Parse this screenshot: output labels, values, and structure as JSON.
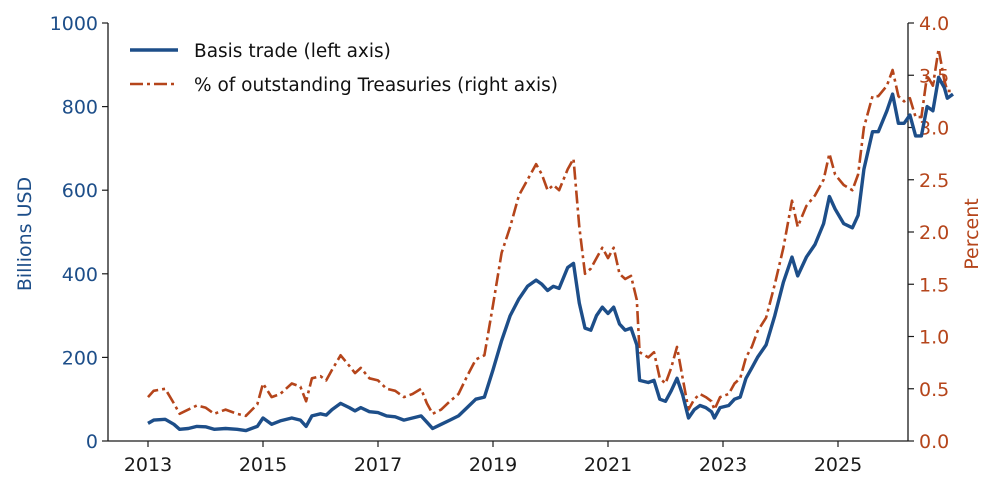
{
  "chart_data": {
    "type": "line",
    "xlim": [
      2012.5,
      2026.7
    ],
    "x_ticks": [
      2013,
      2015,
      2017,
      2019,
      2021,
      2023,
      2025
    ],
    "left_axis": {
      "label": "Billions USD",
      "lim": [
        0,
        1000
      ],
      "ticks": [
        0,
        200,
        400,
        600,
        800,
        1000
      ],
      "color": "#1d4e89"
    },
    "right_axis": {
      "label": "Percent",
      "lim": [
        0.0,
        4.0
      ],
      "ticks": [
        "0.0",
        "0.5",
        "1.0",
        "1.5",
        "2.0",
        "2.5",
        "3.0",
        "3.5",
        "4.0"
      ],
      "color": "#b5451b"
    },
    "legend_position": "top-left",
    "grid": false,
    "series": [
      {
        "name": "Basis trade (left axis)",
        "axis": "left",
        "style": "solid",
        "color": "#1d4e89",
        "points": [
          [
            2013.0,
            42
          ],
          [
            2013.1,
            50
          ],
          [
            2013.3,
            52
          ],
          [
            2013.45,
            40
          ],
          [
            2013.55,
            28
          ],
          [
            2013.7,
            30
          ],
          [
            2013.85,
            35
          ],
          [
            2014.0,
            34
          ],
          [
            2014.15,
            28
          ],
          [
            2014.35,
            30
          ],
          [
            2014.55,
            28
          ],
          [
            2014.7,
            25
          ],
          [
            2014.9,
            35
          ],
          [
            2015.0,
            55
          ],
          [
            2015.15,
            40
          ],
          [
            2015.3,
            48
          ],
          [
            2015.5,
            55
          ],
          [
            2015.65,
            50
          ],
          [
            2015.75,
            35
          ],
          [
            2015.85,
            60
          ],
          [
            2016.0,
            65
          ],
          [
            2016.1,
            62
          ],
          [
            2016.2,
            75
          ],
          [
            2016.35,
            90
          ],
          [
            2016.5,
            80
          ],
          [
            2016.6,
            72
          ],
          [
            2016.7,
            80
          ],
          [
            2016.85,
            70
          ],
          [
            2017.0,
            68
          ],
          [
            2017.15,
            60
          ],
          [
            2017.3,
            58
          ],
          [
            2017.45,
            50
          ],
          [
            2017.6,
            55
          ],
          [
            2017.75,
            60
          ],
          [
            2017.85,
            45
          ],
          [
            2017.95,
            30
          ],
          [
            2018.1,
            40
          ],
          [
            2018.25,
            50
          ],
          [
            2018.4,
            60
          ],
          [
            2018.55,
            80
          ],
          [
            2018.7,
            100
          ],
          [
            2018.85,
            105
          ],
          [
            2019.0,
            170
          ],
          [
            2019.15,
            240
          ],
          [
            2019.3,
            300
          ],
          [
            2019.45,
            340
          ],
          [
            2019.6,
            370
          ],
          [
            2019.75,
            385
          ],
          [
            2019.85,
            375
          ],
          [
            2019.95,
            360
          ],
          [
            2020.05,
            370
          ],
          [
            2020.15,
            365
          ],
          [
            2020.3,
            415
          ],
          [
            2020.4,
            425
          ],
          [
            2020.5,
            330
          ],
          [
            2020.6,
            270
          ],
          [
            2020.7,
            265
          ],
          [
            2020.8,
            300
          ],
          [
            2020.9,
            320
          ],
          [
            2021.0,
            305
          ],
          [
            2021.1,
            320
          ],
          [
            2021.2,
            280
          ],
          [
            2021.3,
            265
          ],
          [
            2021.4,
            270
          ],
          [
            2021.5,
            230
          ],
          [
            2021.55,
            145
          ],
          [
            2021.7,
            140
          ],
          [
            2021.8,
            145
          ],
          [
            2021.9,
            100
          ],
          [
            2022.0,
            95
          ],
          [
            2022.1,
            120
          ],
          [
            2022.2,
            150
          ],
          [
            2022.3,
            110
          ],
          [
            2022.4,
            55
          ],
          [
            2022.5,
            75
          ],
          [
            2022.6,
            85
          ],
          [
            2022.7,
            80
          ],
          [
            2022.8,
            70
          ],
          [
            2022.85,
            55
          ],
          [
            2022.95,
            80
          ],
          [
            2023.1,
            85
          ],
          [
            2023.2,
            100
          ],
          [
            2023.3,
            105
          ],
          [
            2023.4,
            150
          ],
          [
            2023.5,
            175
          ],
          [
            2023.6,
            200
          ],
          [
            2023.75,
            230
          ],
          [
            2023.9,
            300
          ],
          [
            2024.05,
            380
          ],
          [
            2024.2,
            440
          ],
          [
            2024.3,
            395
          ],
          [
            2024.45,
            440
          ],
          [
            2024.6,
            470
          ],
          [
            2024.75,
            520
          ],
          [
            2024.85,
            585
          ],
          [
            2024.95,
            555
          ],
          [
            2025.1,
            520
          ],
          [
            2025.25,
            510
          ],
          [
            2025.35,
            540
          ],
          [
            2025.45,
            650
          ],
          [
            2025.6,
            740
          ],
          [
            2025.7,
            740
          ],
          [
            2025.85,
            790
          ],
          [
            2025.95,
            830
          ],
          [
            2026.05,
            760
          ],
          [
            2026.15,
            760
          ],
          [
            2026.25,
            780
          ],
          [
            2026.35,
            730
          ],
          [
            2026.45,
            730
          ],
          [
            2026.55,
            800
          ],
          [
            2026.65,
            790
          ],
          [
            2026.75,
            870
          ],
          [
            2026.85,
            845
          ],
          [
            2026.9,
            820
          ],
          [
            2027.0,
            830
          ]
        ]
      },
      {
        "name": "% of outstanding Treasuries (right axis)",
        "axis": "right",
        "style": "dashdot",
        "color": "#b5451b",
        "points": [
          [
            2013.0,
            0.42
          ],
          [
            2013.1,
            0.48
          ],
          [
            2013.3,
            0.5
          ],
          [
            2013.45,
            0.36
          ],
          [
            2013.55,
            0.26
          ],
          [
            2013.7,
            0.3
          ],
          [
            2013.85,
            0.34
          ],
          [
            2014.0,
            0.32
          ],
          [
            2014.15,
            0.26
          ],
          [
            2014.35,
            0.3
          ],
          [
            2014.55,
            0.26
          ],
          [
            2014.7,
            0.24
          ],
          [
            2014.9,
            0.35
          ],
          [
            2015.0,
            0.55
          ],
          [
            2015.15,
            0.42
          ],
          [
            2015.3,
            0.45
          ],
          [
            2015.5,
            0.55
          ],
          [
            2015.65,
            0.52
          ],
          [
            2015.75,
            0.38
          ],
          [
            2015.85,
            0.6
          ],
          [
            2016.0,
            0.62
          ],
          [
            2016.1,
            0.58
          ],
          [
            2016.2,
            0.68
          ],
          [
            2016.35,
            0.82
          ],
          [
            2016.5,
            0.72
          ],
          [
            2016.6,
            0.65
          ],
          [
            2016.7,
            0.7
          ],
          [
            2016.85,
            0.6
          ],
          [
            2017.0,
            0.58
          ],
          [
            2017.15,
            0.5
          ],
          [
            2017.3,
            0.48
          ],
          [
            2017.45,
            0.42
          ],
          [
            2017.6,
            0.45
          ],
          [
            2017.75,
            0.5
          ],
          [
            2017.85,
            0.36
          ],
          [
            2017.95,
            0.26
          ],
          [
            2018.1,
            0.3
          ],
          [
            2018.25,
            0.38
          ],
          [
            2018.4,
            0.45
          ],
          [
            2018.55,
            0.62
          ],
          [
            2018.7,
            0.78
          ],
          [
            2018.85,
            0.82
          ],
          [
            2019.0,
            1.3
          ],
          [
            2019.15,
            1.8
          ],
          [
            2019.3,
            2.05
          ],
          [
            2019.45,
            2.35
          ],
          [
            2019.6,
            2.5
          ],
          [
            2019.75,
            2.65
          ],
          [
            2019.85,
            2.55
          ],
          [
            2019.95,
            2.4
          ],
          [
            2020.05,
            2.45
          ],
          [
            2020.15,
            2.4
          ],
          [
            2020.3,
            2.6
          ],
          [
            2020.4,
            2.7
          ],
          [
            2020.5,
            2.05
          ],
          [
            2020.6,
            1.6
          ],
          [
            2020.7,
            1.65
          ],
          [
            2020.8,
            1.75
          ],
          [
            2020.9,
            1.85
          ],
          [
            2021.0,
            1.75
          ],
          [
            2021.1,
            1.85
          ],
          [
            2021.2,
            1.6
          ],
          [
            2021.3,
            1.55
          ],
          [
            2021.4,
            1.58
          ],
          [
            2021.5,
            1.35
          ],
          [
            2021.55,
            0.85
          ],
          [
            2021.7,
            0.8
          ],
          [
            2021.8,
            0.85
          ],
          [
            2021.9,
            0.6
          ],
          [
            2022.0,
            0.55
          ],
          [
            2022.1,
            0.7
          ],
          [
            2022.2,
            0.9
          ],
          [
            2022.3,
            0.6
          ],
          [
            2022.4,
            0.3
          ],
          [
            2022.5,
            0.4
          ],
          [
            2022.6,
            0.45
          ],
          [
            2022.7,
            0.42
          ],
          [
            2022.8,
            0.38
          ],
          [
            2022.85,
            0.3
          ],
          [
            2022.95,
            0.42
          ],
          [
            2023.1,
            0.45
          ],
          [
            2023.2,
            0.55
          ],
          [
            2023.3,
            0.6
          ],
          [
            2023.4,
            0.8
          ],
          [
            2023.5,
            0.9
          ],
          [
            2023.6,
            1.05
          ],
          [
            2023.75,
            1.18
          ],
          [
            2023.9,
            1.5
          ],
          [
            2024.05,
            1.85
          ],
          [
            2024.2,
            2.3
          ],
          [
            2024.3,
            2.05
          ],
          [
            2024.45,
            2.25
          ],
          [
            2024.6,
            2.35
          ],
          [
            2024.75,
            2.5
          ],
          [
            2024.85,
            2.75
          ],
          [
            2024.95,
            2.55
          ],
          [
            2025.1,
            2.45
          ],
          [
            2025.25,
            2.4
          ],
          [
            2025.35,
            2.55
          ],
          [
            2025.45,
            3.0
          ],
          [
            2025.6,
            3.3
          ],
          [
            2025.7,
            3.3
          ],
          [
            2025.85,
            3.4
          ],
          [
            2025.95,
            3.55
          ],
          [
            2026.05,
            3.3
          ],
          [
            2026.15,
            3.25
          ],
          [
            2026.25,
            3.28
          ],
          [
            2026.35,
            3.1
          ],
          [
            2026.45,
            3.1
          ],
          [
            2026.55,
            3.5
          ],
          [
            2026.65,
            3.4
          ],
          [
            2026.75,
            3.75
          ],
          [
            2026.85,
            3.45
          ],
          [
            2026.9,
            3.35
          ],
          [
            2027.0,
            3.35
          ]
        ]
      }
    ]
  }
}
